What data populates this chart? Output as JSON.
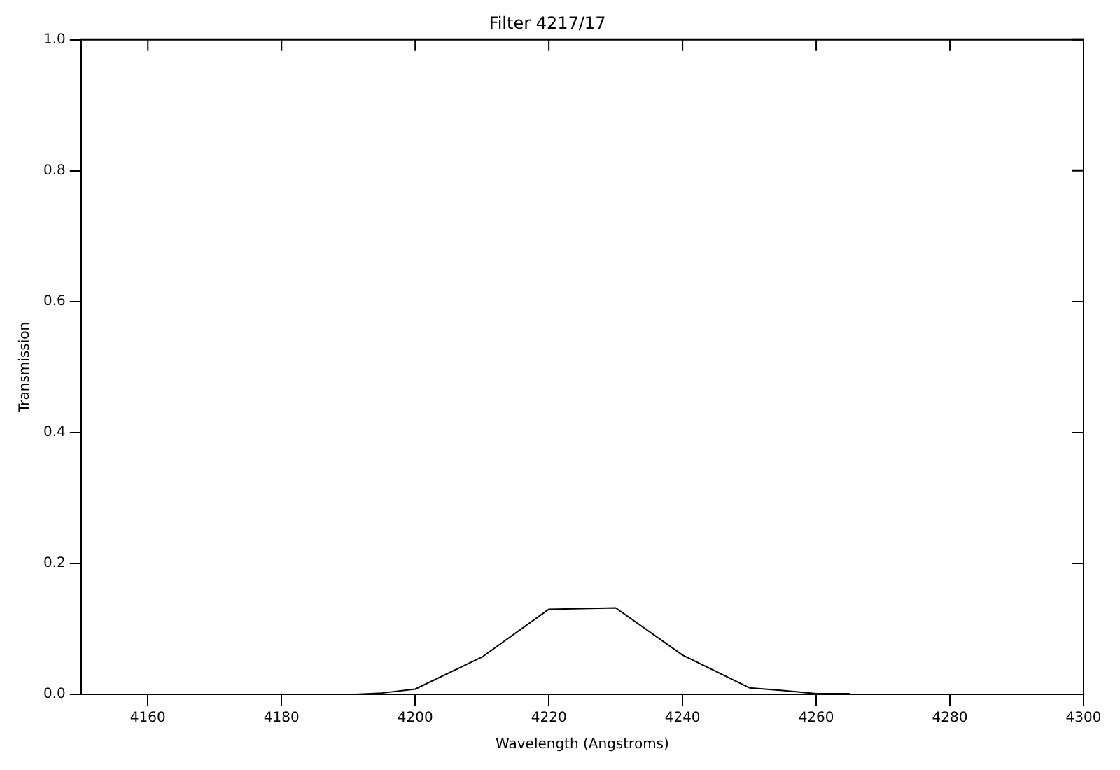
{
  "chart_data": {
    "type": "line",
    "title": "Filter 4217/17",
    "xlabel": "Wavelength (Angstroms)",
    "ylabel": "Transmission",
    "x": [
      4191,
      4195,
      4200,
      4210,
      4220,
      4230,
      4240,
      4250,
      4255,
      4260,
      4265
    ],
    "series": [
      {
        "color": "#000000",
        "values": [
          0,
          0.002,
          0.008,
          0.057,
          0.13,
          0.132,
          0.06,
          0.01,
          0.006,
          0.001,
          0.001
        ]
      }
    ],
    "xlim": [
      4150,
      4300
    ],
    "xticks": [
      4160,
      4180,
      4200,
      4220,
      4240,
      4260,
      4280,
      4300
    ],
    "ylim": [
      0,
      1
    ],
    "yticks": [
      {
        "value": 0,
        "label": "0.0"
      },
      {
        "value": 0.2,
        "label": "0.2"
      },
      {
        "value": 0.4,
        "label": "0.4"
      },
      {
        "value": 0.6,
        "label": "0.6"
      },
      {
        "value": 0.8,
        "label": "0.8"
      },
      {
        "value": 1,
        "label": "1.0"
      }
    ],
    "grid": false,
    "legend": false,
    "marker": "none",
    "line_style": "solid"
  }
}
